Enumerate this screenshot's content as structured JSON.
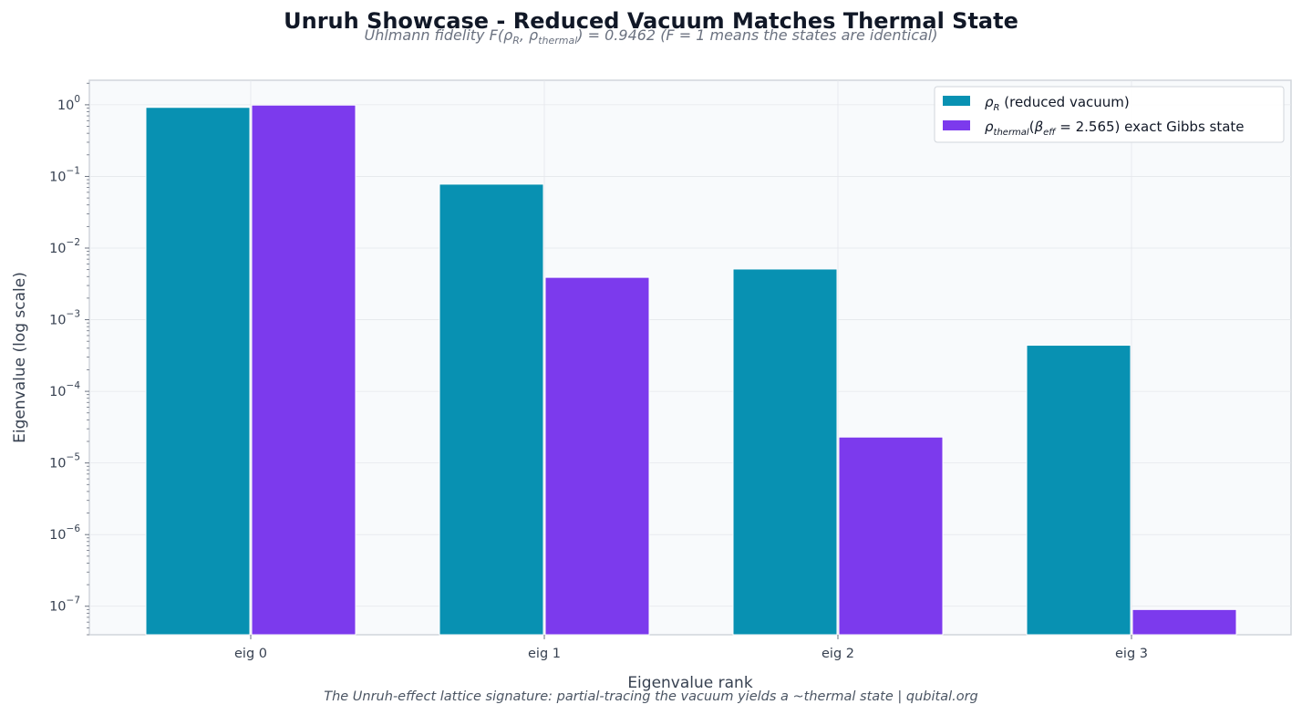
{
  "chart_data": {
    "type": "bar",
    "title": "Unruh Showcase - Reduced Vacuum Matches Thermal State",
    "subtitle_prefix": "Uhlmann fidelity  F(",
    "subtitle_rho1": "ρ",
    "subtitle_rho1_sub": "R",
    "subtitle_comma": ", ",
    "subtitle_rho2": "ρ",
    "subtitle_rho2_sub": "thermal",
    "subtitle_suffix": ") = 0.9462   (F = 1 means the states are identical)",
    "footer": "The Unruh-effect lattice signature: partial-tracing the vacuum yields a ~thermal state  |  qubital.org",
    "xlabel": "Eigenvalue rank",
    "ylabel": "Eigenvalue (log scale)",
    "yscale": "log",
    "ylim": [
      4e-08,
      2.2
    ],
    "grid": true,
    "legend_position": "top-right",
    "categories": [
      "eig 0",
      "eig 1",
      "eig 2",
      "eig 3"
    ],
    "yticks": [
      {
        "value": 1,
        "base": "10",
        "exp": "0"
      },
      {
        "value": 0.1,
        "base": "10",
        "exp": "−1"
      },
      {
        "value": 0.01,
        "base": "10",
        "exp": "−2"
      },
      {
        "value": 0.001,
        "base": "10",
        "exp": "−3"
      },
      {
        "value": 0.0001,
        "base": "10",
        "exp": "−4"
      },
      {
        "value": 1e-05,
        "base": "10",
        "exp": "−5"
      },
      {
        "value": 1e-06,
        "base": "10",
        "exp": "−6"
      },
      {
        "value": 1e-07,
        "base": "10",
        "exp": "−7"
      }
    ],
    "series": [
      {
        "name": "reduced vacuum",
        "legend_symbol": "ρ",
        "legend_sub": "R",
        "legend_text": " (reduced vacuum)",
        "color": "#0891b2",
        "values": [
          0.92,
          0.078,
          0.0051,
          0.00044
        ]
      },
      {
        "name": "exact Gibbs state",
        "legend_symbol": "ρ",
        "legend_sub": "thermal",
        "legend_paren": "(",
        "legend_beta": "β",
        "legend_beta_sub": "eff",
        "legend_text": " = 2.565)  exact Gibbs state",
        "color": "#7c3aed",
        "values": [
          0.99,
          0.0039,
          2.3e-05,
          9e-08
        ]
      }
    ]
  }
}
